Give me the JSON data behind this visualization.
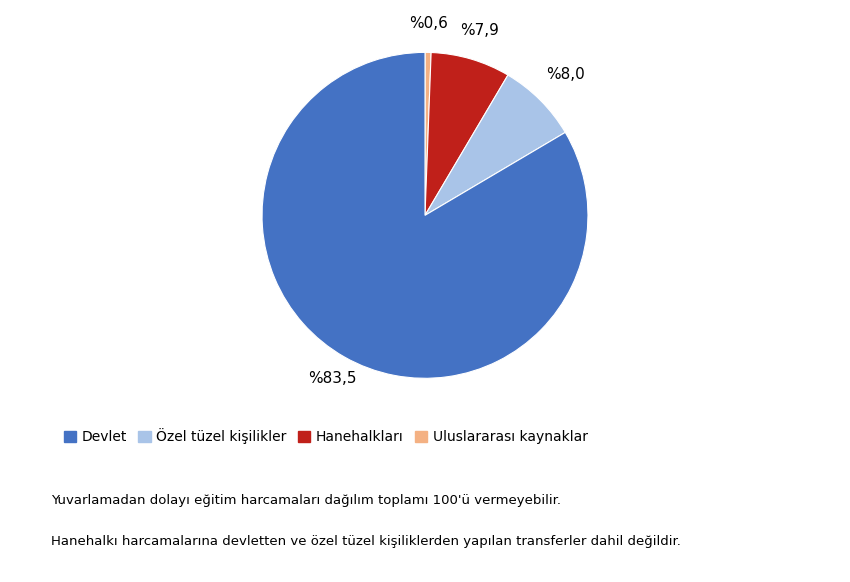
{
  "labels": [
    "Devlet",
    "Özel tüzel kişilikler",
    "Hanehalkları",
    "Uluslararası kaynaklar"
  ],
  "values": [
    83.5,
    8.0,
    7.9,
    0.6
  ],
  "colors": [
    "#4472C4",
    "#A9C4E8",
    "#C0201A",
    "#F4B183"
  ],
  "pct_labels": [
    "%83,5",
    "%8,0",
    "%7,9",
    "%0,6"
  ],
  "legend_labels": [
    "Devlet",
    "Özel tüzel kişilikler",
    "Hanehalkları",
    "Uluslararası kaynaklar"
  ],
  "footnote1": "Yuvarlamadan dolayı eğitim harcamaları dağılım toplamı 100'ü vermeyebilir.",
  "footnote2": "Hanehalkı harcamalarına devletten ve özel tüzel kişiliklerden yapılan transferler dahil değildir.",
  "background_color": "#FFFFFF",
  "text_color": "#000000",
  "label_fontsize": 11,
  "legend_fontsize": 10,
  "footnote_fontsize": 9.5,
  "startangle": 90
}
